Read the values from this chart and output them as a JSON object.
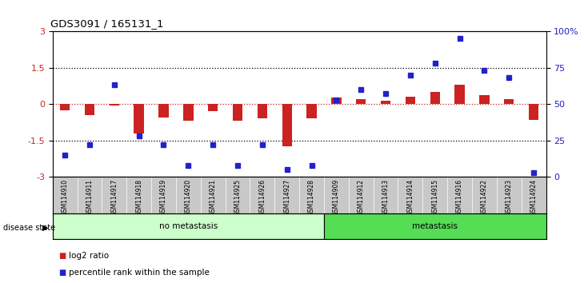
{
  "title": "GDS3091 / 165131_1",
  "samples": [
    "GSM114910",
    "GSM114911",
    "GSM114917",
    "GSM114918",
    "GSM114919",
    "GSM114920",
    "GSM114921",
    "GSM114925",
    "GSM114926",
    "GSM114927",
    "GSM114928",
    "GSM114909",
    "GSM114912",
    "GSM114913",
    "GSM114914",
    "GSM114915",
    "GSM114916",
    "GSM114922",
    "GSM114923",
    "GSM114924"
  ],
  "log2_ratio": [
    -0.25,
    -0.45,
    -0.05,
    -1.2,
    -0.55,
    -0.7,
    -0.3,
    -0.7,
    -0.6,
    -1.75,
    -0.6,
    0.25,
    0.2,
    0.15,
    0.3,
    0.5,
    0.8,
    0.35,
    0.2,
    -0.65
  ],
  "percentile": [
    15,
    22,
    63,
    28,
    22,
    8,
    22,
    8,
    22,
    5,
    8,
    53,
    60,
    57,
    70,
    78,
    95,
    73,
    68,
    3
  ],
  "no_metastasis_count": 11,
  "metastasis_count": 9,
  "ylim": [
    -3,
    3
  ],
  "yticks_left": [
    -3,
    -1.5,
    0,
    1.5,
    3
  ],
  "yticks_right": [
    0,
    25,
    50,
    75,
    100
  ],
  "bar_color": "#cc2222",
  "dot_color": "#2222cc",
  "dotted_lines_black": [
    -1.5,
    1.5
  ],
  "dotted_line_red": 0,
  "legend_log2": "log2 ratio",
  "legend_pct": "percentile rank within the sample",
  "no_meta_color": "#ccffcc",
  "meta_color": "#55dd55",
  "label_bg_color": "#c8c8c8",
  "axis_bg_color": "#ffffff",
  "figsize": [
    7.3,
    3.54
  ],
  "dpi": 100
}
